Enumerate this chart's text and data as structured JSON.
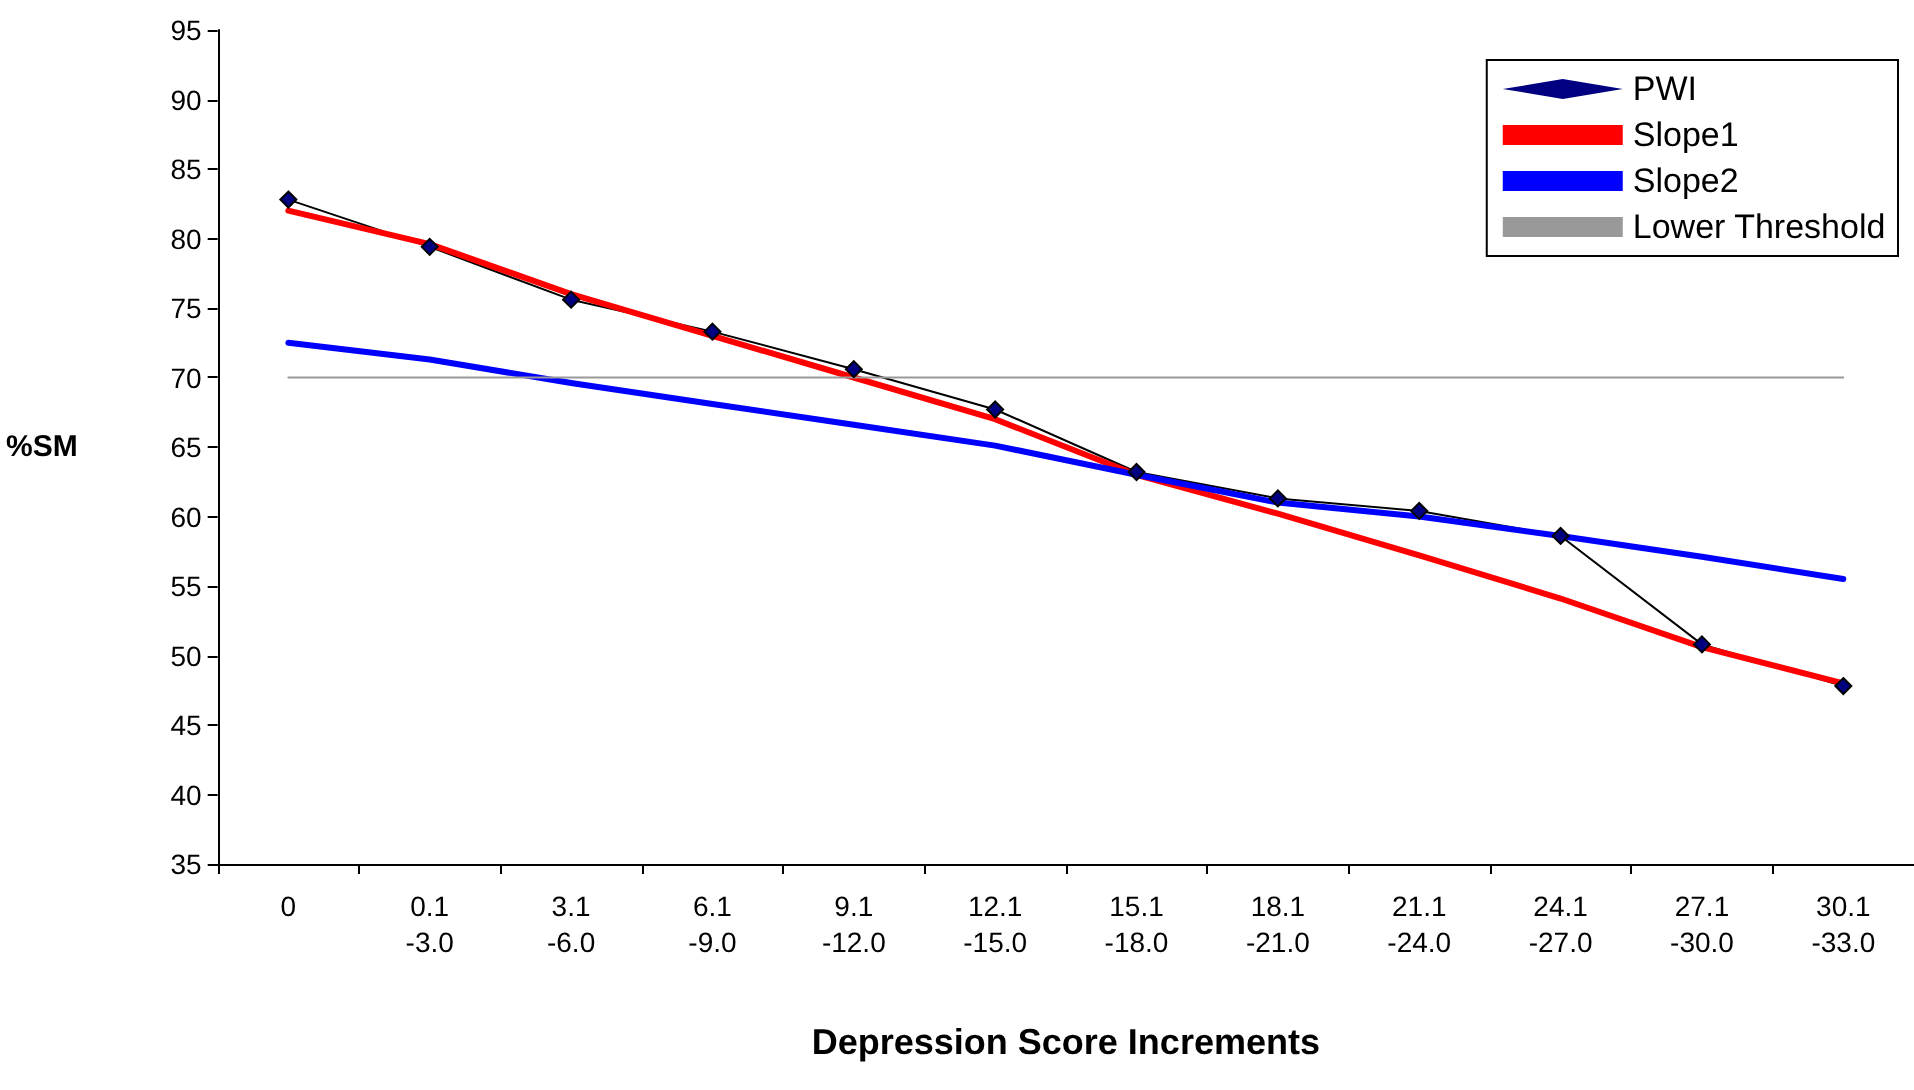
{
  "chart_data": {
    "type": "line",
    "xlabel": "Depression Score Increments",
    "ylabel": "%SM",
    "categories": [
      "0",
      "0.1\n-3.0",
      "3.1\n-6.0",
      "6.1\n-9.0",
      "9.1\n-12.0",
      "12.1\n-15.0",
      "15.1\n-18.0",
      "18.1\n-21.0",
      "21.1\n-24.0",
      "24.1\n-27.0",
      "27.1\n-30.0",
      "30.1\n-33.0"
    ],
    "series": [
      {
        "name": "PWI",
        "color": "#000000",
        "marker": "diamond",
        "values": [
          82.8,
          79.4,
          75.6,
          73.3,
          70.6,
          67.7,
          63.2,
          61.3,
          60.4,
          58.6,
          50.8,
          47.8
        ]
      },
      {
        "name": "Slope1",
        "color": "#ff0000",
        "marker": "none",
        "values": [
          82,
          79.6,
          76,
          73,
          70,
          67,
          63,
          60.2,
          57.2,
          54.1,
          50.6,
          48
        ]
      },
      {
        "name": "Slope2",
        "color": "#0000ff",
        "marker": "none",
        "values": [
          72.5,
          71.3,
          69.6,
          68.1,
          66.6,
          65.1,
          63,
          61,
          60,
          58.6,
          57.1,
          55.5
        ]
      },
      {
        "name": "Lower Threshold",
        "color": "#999999",
        "marker": "none",
        "values": [
          70,
          70,
          70,
          70,
          70,
          70,
          70,
          70,
          70,
          70,
          70,
          70
        ]
      }
    ],
    "ylim": [
      35,
      95
    ],
    "yticks": [
      35,
      40,
      45,
      50,
      55,
      60,
      65,
      70,
      75,
      80,
      85,
      90,
      95
    ],
    "grid": false,
    "legend": "top right"
  }
}
